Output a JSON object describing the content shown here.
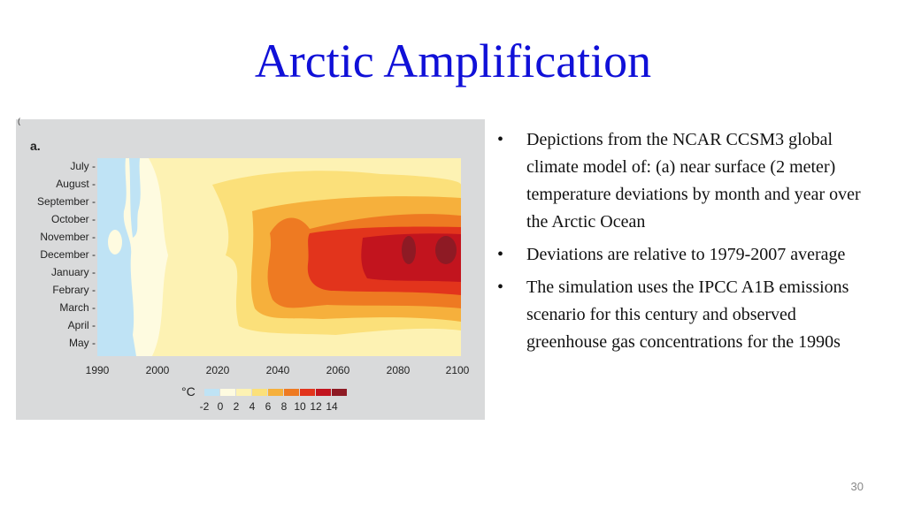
{
  "slide": {
    "title": "Arctic Amplification",
    "page_number": "30",
    "bullets": [
      "Depictions from the NCAR CCSM3 global climate model of: (a) near surface (2 meter) temperature deviations by month and year over the Arctic Ocean",
      "Deviations are relative to 1979-2007 average",
      "The simulation uses the IPCC A1B emissions scenario for this century and observed greenhouse gas concentrations for the 1990s"
    ]
  },
  "figure": {
    "corner_mark": "(",
    "panel_label": "a.",
    "months": [
      "July -",
      "August -",
      "September -",
      "October -",
      "November -",
      "December -",
      "January -",
      "Febrary -",
      "March -",
      "April -",
      "May -"
    ],
    "years": [
      "1990",
      "2000",
      "2020",
      "2040",
      "2060",
      "2080",
      "2100"
    ],
    "colorbar": {
      "unit": "°C",
      "labels": [
        "-2",
        "0",
        "2",
        "4",
        "6",
        "8",
        "10",
        "12",
        "14"
      ],
      "colors": [
        "#bfe3f5",
        "#fefbe0",
        "#fdf2b3",
        "#fbe07a",
        "#f6b03c",
        "#ee7a22",
        "#e2341c",
        "#c2141e",
        "#8e1a24"
      ]
    }
  }
}
